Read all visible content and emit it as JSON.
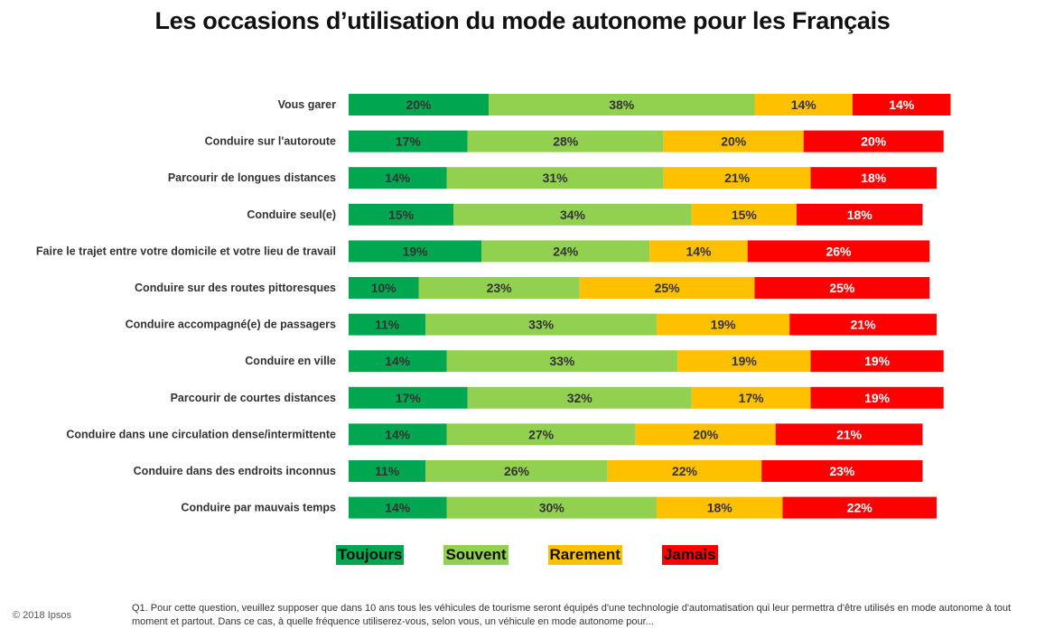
{
  "chart_data": {
    "type": "bar",
    "orientation": "horizontal-stacked",
    "title": "Les occasions d’utilisation du mode autonome pour les Français",
    "categories": [
      "Vous garer",
      "Conduire sur l'autoroute",
      "Parcourir de longues distances",
      "Conduire seul(e)",
      "Faire le trajet entre votre domicile et votre lieu de travail",
      "Conduire sur des routes pittoresques",
      "Conduire accompagné(e) de passagers",
      "Conduire en ville",
      "Parcourir de courtes distances",
      "Conduire dans une circulation dense/intermittente",
      "Conduire dans des endroits inconnus",
      "Conduire par mauvais temps"
    ],
    "series": [
      {
        "name": "Toujours",
        "color": "#00a650",
        "values": [
          20,
          17,
          14,
          15,
          19,
          10,
          11,
          14,
          17,
          14,
          11,
          14
        ]
      },
      {
        "name": "Souvent",
        "color": "#92d050",
        "values": [
          38,
          28,
          31,
          34,
          24,
          23,
          33,
          33,
          32,
          27,
          26,
          30
        ]
      },
      {
        "name": "Rarement",
        "color": "#ffc000",
        "values": [
          14,
          20,
          21,
          15,
          14,
          25,
          19,
          19,
          17,
          20,
          22,
          18
        ]
      },
      {
        "name": "Jamais",
        "color": "#ff0000",
        "values": [
          14,
          20,
          18,
          18,
          26,
          25,
          21,
          19,
          19,
          21,
          23,
          22
        ]
      }
    ],
    "value_suffix": "%",
    "legend_position": "bottom"
  },
  "footer": {
    "copyright": "© 2018 Ipsos",
    "footnote": "Q1. Pour cette question, veuillez supposer que dans 10 ans tous les véhicules de tourisme seront équipés d'une technologie d'automatisation qui leur permettra d'être utilisés en mode autonome à tout moment et partout. Dans ce cas, à quelle fréquence utiliserez-vous, selon vous, un véhicule en mode autonome pour..."
  }
}
